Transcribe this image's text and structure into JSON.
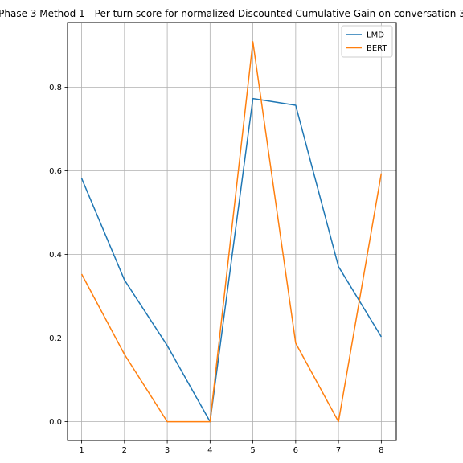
{
  "chart_data": {
    "type": "line",
    "title": "Phase 3 Method 1 - Per turn score for normalized Discounted Cumulative Gain on conversation 3",
    "xlabel": "",
    "ylabel": "",
    "x": [
      1,
      2,
      3,
      4,
      5,
      6,
      7,
      8
    ],
    "x_ticks": [
      "1",
      "2",
      "3",
      "4",
      "5",
      "6",
      "7",
      "8"
    ],
    "y_ticks": [
      "0.0",
      "0.2",
      "0.4",
      "0.6",
      "0.8"
    ],
    "xlim": [
      0.67,
      8.35
    ],
    "ylim": [
      -0.045,
      0.955
    ],
    "grid": true,
    "legend_position": "top-right",
    "series": [
      {
        "name": "LMD",
        "color": "#1f77b4",
        "values": [
          0.582,
          0.339,
          0.182,
          0.0,
          0.773,
          0.757,
          0.371,
          0.203
        ]
      },
      {
        "name": "BERT",
        "color": "#ff7f0e",
        "values": [
          0.353,
          0.161,
          0.0,
          0.0,
          0.909,
          0.188,
          0.0,
          0.594
        ]
      }
    ]
  }
}
